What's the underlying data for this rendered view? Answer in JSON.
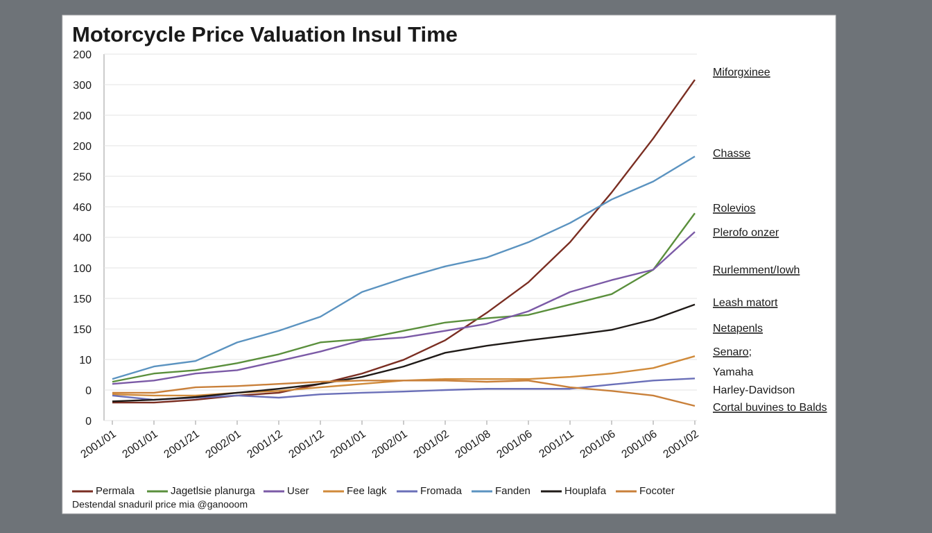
{
  "chart_data": {
    "type": "line",
    "title": "Motorcycle Price Valuation Insul Time",
    "footnote": "Destendal snaduril price mia @ganooom",
    "categories": [
      "2001/01",
      "2001/01",
      "2001/21",
      "2002/01",
      "2001/12",
      "2001/12",
      "2001/01",
      "2002/01",
      "2001/02",
      "2001/08",
      "2001/06",
      "2001/11",
      "2001/06",
      "2001/06",
      "2001/02"
    ],
    "ylim": [
      0,
      12
    ],
    "yticks": [
      {
        "value": 0,
        "label": "0"
      },
      {
        "value": 1,
        "label": "0"
      },
      {
        "value": 2,
        "label": "10"
      },
      {
        "value": 3,
        "label": "150"
      },
      {
        "value": 4,
        "label": "150"
      },
      {
        "value": 5,
        "label": "100"
      },
      {
        "value": 6,
        "label": "400"
      },
      {
        "value": 7,
        "label": "460"
      },
      {
        "value": 8,
        "label": "250"
      },
      {
        "value": 9,
        "label": "200"
      },
      {
        "value": 10,
        "label": "200"
      },
      {
        "value": 11,
        "label": "300"
      },
      {
        "value": 12,
        "label": "200"
      }
    ],
    "grid": true,
    "series": [
      {
        "name": "Permala",
        "color": "#7a2e22",
        "values": [
          0.59,
          0.59,
          0.68,
          0.82,
          0.91,
          1.2,
          1.54,
          1.99,
          2.63,
          3.53,
          4.53,
          5.84,
          7.47,
          9.24,
          11.16
        ]
      },
      {
        "name": "Jagetlsie planurga",
        "color": "#5a8f3c",
        "values": [
          1.27,
          1.54,
          1.65,
          1.88,
          2.17,
          2.56,
          2.67,
          2.94,
          3.21,
          3.35,
          3.46,
          3.8,
          4.14,
          4.94,
          6.79
        ]
      },
      {
        "name": "User",
        "color": "#7b5aa6",
        "values": [
          1.2,
          1.31,
          1.54,
          1.65,
          1.95,
          2.26,
          2.63,
          2.72,
          2.94,
          3.17,
          3.58,
          4.21,
          4.6,
          4.94,
          6.18
        ]
      },
      {
        "name": "Fee lagk",
        "color": "#d08a3a",
        "values": [
          0.86,
          0.82,
          0.82,
          0.91,
          0.97,
          1.09,
          1.2,
          1.31,
          1.36,
          1.36,
          1.36,
          1.43,
          1.54,
          1.72,
          2.11
        ]
      },
      {
        "name": "Fromada",
        "color": "#6a6fb8",
        "values": [
          0.82,
          0.68,
          0.75,
          0.82,
          0.75,
          0.86,
          0.91,
          0.95,
          1.0,
          1.04,
          1.04,
          1.04,
          1.18,
          1.31,
          1.38
        ]
      },
      {
        "name": "Fanden",
        "color": "#5b93c0",
        "values": [
          1.36,
          1.77,
          1.95,
          2.56,
          2.94,
          3.4,
          4.21,
          4.66,
          5.05,
          5.34,
          5.84,
          6.47,
          7.24,
          7.83,
          8.65
        ]
      },
      {
        "name": "Houplafa",
        "color": "#1f1a17",
        "values": [
          0.63,
          0.68,
          0.77,
          0.91,
          1.04,
          1.2,
          1.43,
          1.77,
          2.22,
          2.45,
          2.63,
          2.79,
          2.97,
          3.31,
          3.8
        ]
      },
      {
        "name": "Focoter",
        "color": "#c9803a",
        "values": [
          0.91,
          0.91,
          1.09,
          1.13,
          1.2,
          1.27,
          1.31,
          1.31,
          1.31,
          1.27,
          1.31,
          1.09,
          0.97,
          0.82,
          0.48
        ]
      }
    ],
    "annotations": [
      "Miforgxinee",
      "Chasse",
      "Rolevios",
      "Plerofo onzer",
      "Rurlemment/Iowh",
      "Leash matort",
      "Netapenls",
      "Senaro;",
      "Yamaha",
      "Harley-Davidson",
      "Cortal buvines to Balds"
    ]
  }
}
